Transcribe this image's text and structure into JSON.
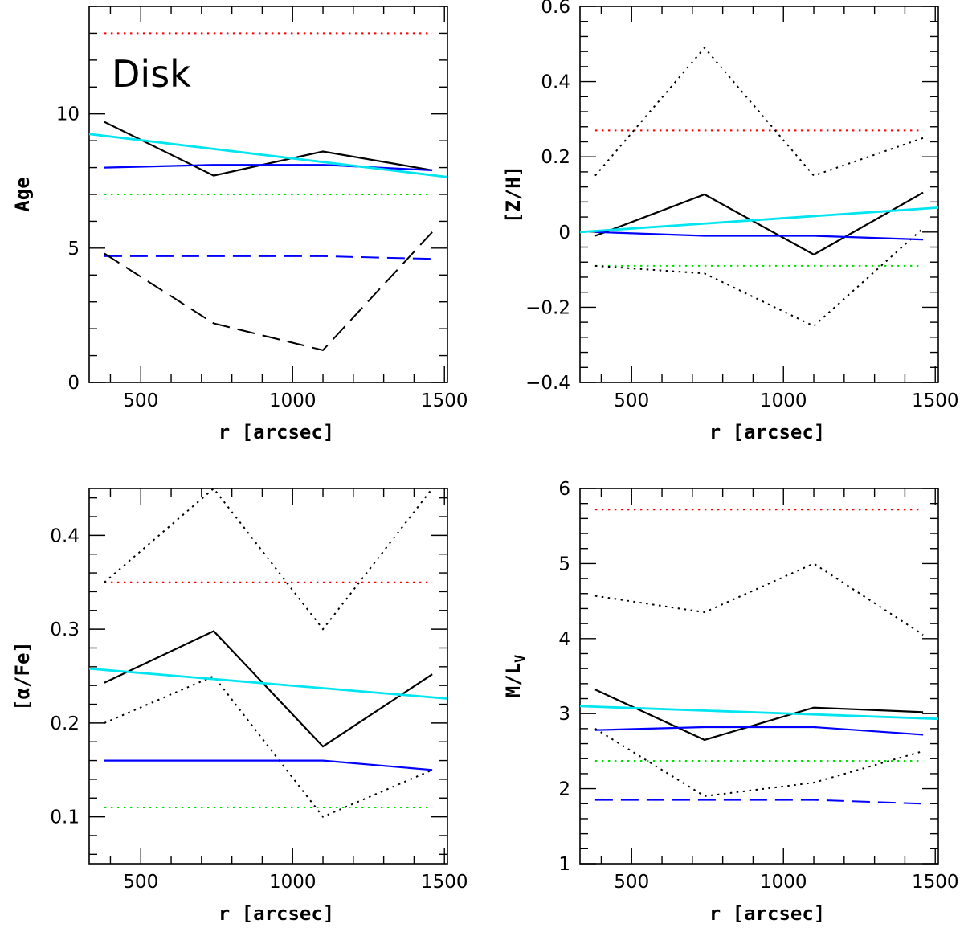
{
  "figure_title": "",
  "chart_data": [
    {
      "type": "line",
      "panel": "top-left",
      "title": "",
      "annotation": "Disk",
      "xlabel": "r [arcsec]",
      "ylabel": "Age",
      "xlim": [
        330,
        1510
      ],
      "ylim": [
        0,
        14
      ],
      "xticks": [
        500,
        1000,
        1500
      ],
      "xtick_labels": [
        "500",
        "1000",
        "1500"
      ],
      "yticks": [
        0,
        5,
        10
      ],
      "ytick_labels": [
        "0",
        "5",
        "10"
      ],
      "series": [
        {
          "name": "red-dotted",
          "color": "#ff0000",
          "style": "dotted",
          "x": [
            380,
            1460
          ],
          "y": [
            13.0,
            13.0
          ]
        },
        {
          "name": "green-dotted",
          "color": "#00e000",
          "style": "dotted",
          "x": [
            380,
            1460
          ],
          "y": [
            7.0,
            7.0
          ]
        },
        {
          "name": "blue-dashed",
          "color": "#0000ff",
          "style": "dashed",
          "x": [
            380,
            1100,
            1460
          ],
          "y": [
            4.7,
            4.7,
            4.6
          ]
        },
        {
          "name": "black-dashed",
          "color": "#000000",
          "style": "dashed",
          "x": [
            380,
            740,
            1100,
            1460
          ],
          "y": [
            4.8,
            2.2,
            1.2,
            5.6
          ]
        },
        {
          "name": "black-solid",
          "color": "#000000",
          "style": "solid",
          "x": [
            380,
            740,
            1100,
            1460
          ],
          "y": [
            9.7,
            7.7,
            8.6,
            7.9
          ]
        },
        {
          "name": "blue-solid",
          "color": "#0000ff",
          "style": "solid",
          "x": [
            380,
            740,
            1100,
            1460
          ],
          "y": [
            8.0,
            8.1,
            8.1,
            7.9
          ]
        },
        {
          "name": "cyan-solid",
          "color": "#00e5f0",
          "style": "solid",
          "x": [
            330,
            1510
          ],
          "y": [
            9.25,
            7.65
          ]
        }
      ]
    },
    {
      "type": "line",
      "panel": "top-right",
      "title": "",
      "annotation": "",
      "xlabel": "r [arcsec]",
      "ylabel": "[Z/H]",
      "xlim": [
        330,
        1510
      ],
      "ylim": [
        -0.4,
        0.6
      ],
      "xticks": [
        500,
        1000,
        1500
      ],
      "xtick_labels": [
        "500",
        "1000",
        "1500"
      ],
      "yticks": [
        -0.4,
        -0.2,
        0,
        0.2,
        0.4,
        0.6
      ],
      "ytick_labels": [
        "−0.4",
        "−0.2",
        "0",
        "0.2",
        "0.4",
        "0.6"
      ],
      "series": [
        {
          "name": "red-dotted",
          "color": "#ff0000",
          "style": "dotted",
          "x": [
            380,
            1460
          ],
          "y": [
            0.27,
            0.27
          ]
        },
        {
          "name": "green-dotted",
          "color": "#00e000",
          "style": "dotted",
          "x": [
            380,
            1460
          ],
          "y": [
            -0.09,
            -0.09
          ]
        },
        {
          "name": "black-dotted-upper",
          "color": "#000000",
          "style": "dotted",
          "x": [
            380,
            740,
            1100,
            1460
          ],
          "y": [
            0.15,
            0.49,
            0.15,
            0.25
          ]
        },
        {
          "name": "black-dotted-lower",
          "color": "#000000",
          "style": "dotted",
          "x": [
            380,
            740,
            1100,
            1460
          ],
          "y": [
            -0.09,
            -0.11,
            -0.25,
            0.01
          ]
        },
        {
          "name": "black-solid",
          "color": "#000000",
          "style": "solid",
          "x": [
            380,
            740,
            1100,
            1460
          ],
          "y": [
            -0.01,
            0.1,
            -0.06,
            0.105
          ]
        },
        {
          "name": "blue-solid",
          "color": "#0000ff",
          "style": "solid",
          "x": [
            380,
            740,
            1100,
            1460
          ],
          "y": [
            0.0,
            -0.01,
            -0.01,
            -0.02
          ]
        },
        {
          "name": "cyan-solid",
          "color": "#00e5f0",
          "style": "solid",
          "x": [
            330,
            1510
          ],
          "y": [
            0.0,
            0.065
          ]
        }
      ]
    },
    {
      "type": "line",
      "panel": "bottom-left",
      "title": "",
      "annotation": "",
      "xlabel": "r [arcsec]",
      "ylabel": "[α/Fe]",
      "xlim": [
        330,
        1510
      ],
      "ylim": [
        0.05,
        0.45
      ],
      "xticks": [
        500,
        1000,
        1500
      ],
      "xtick_labels": [
        "500",
        "1000",
        "1500"
      ],
      "yticks": [
        0.1,
        0.2,
        0.3,
        0.4
      ],
      "ytick_labels": [
        "0.1",
        "0.2",
        "0.3",
        "0.4"
      ],
      "series": [
        {
          "name": "red-dotted",
          "color": "#ff0000",
          "style": "dotted",
          "x": [
            380,
            1460
          ],
          "y": [
            0.35,
            0.35
          ]
        },
        {
          "name": "green-dotted",
          "color": "#00e000",
          "style": "dotted",
          "x": [
            380,
            1460
          ],
          "y": [
            0.11,
            0.11
          ]
        },
        {
          "name": "black-dotted-upper",
          "color": "#000000",
          "style": "dotted",
          "x": [
            380,
            740,
            1100,
            1460
          ],
          "y": [
            0.35,
            0.45,
            0.3,
            0.45
          ]
        },
        {
          "name": "black-dotted-lower",
          "color": "#000000",
          "style": "dotted",
          "x": [
            380,
            740,
            1100,
            1460
          ],
          "y": [
            0.2,
            0.25,
            0.1,
            0.15
          ]
        },
        {
          "name": "black-solid",
          "color": "#000000",
          "style": "solid",
          "x": [
            380,
            740,
            1100,
            1460
          ],
          "y": [
            0.243,
            0.298,
            0.175,
            0.252
          ]
        },
        {
          "name": "blue-solid",
          "color": "#0000ff",
          "style": "solid",
          "x": [
            380,
            740,
            1100,
            1460
          ],
          "y": [
            0.16,
            0.16,
            0.16,
            0.15
          ]
        },
        {
          "name": "cyan-solid",
          "color": "#00e5f0",
          "style": "solid",
          "x": [
            330,
            1510
          ],
          "y": [
            0.258,
            0.226
          ]
        }
      ]
    },
    {
      "type": "line",
      "panel": "bottom-right",
      "title": "",
      "annotation": "",
      "xlabel": "r [arcsec]",
      "ylabel": "M/L",
      "ylabel_sub": "V",
      "xlim": [
        330,
        1510
      ],
      "ylim": [
        1,
        6
      ],
      "xticks": [
        500,
        1000,
        1500
      ],
      "xtick_labels": [
        "500",
        "1000",
        "1500"
      ],
      "yticks": [
        1,
        2,
        3,
        4,
        5,
        6
      ],
      "ytick_labels": [
        "1",
        "2",
        "3",
        "4",
        "5",
        "6"
      ],
      "series": [
        {
          "name": "red-dotted",
          "color": "#ff0000",
          "style": "dotted",
          "x": [
            380,
            1460
          ],
          "y": [
            5.72,
            5.72
          ]
        },
        {
          "name": "green-dotted",
          "color": "#00e000",
          "style": "dotted",
          "x": [
            380,
            1460
          ],
          "y": [
            2.37,
            2.37
          ]
        },
        {
          "name": "blue-dashed",
          "color": "#0000ff",
          "style": "dashed",
          "x": [
            380,
            1100,
            1460
          ],
          "y": [
            1.85,
            1.85,
            1.8
          ]
        },
        {
          "name": "black-dotted-upper",
          "color": "#000000",
          "style": "dotted",
          "x": [
            380,
            740,
            1100,
            1460
          ],
          "y": [
            4.57,
            4.35,
            5.0,
            4.05
          ]
        },
        {
          "name": "black-dotted-lower",
          "color": "#000000",
          "style": "dotted",
          "x": [
            380,
            740,
            1100,
            1460
          ],
          "y": [
            2.8,
            1.9,
            2.08,
            2.5
          ]
        },
        {
          "name": "black-solid",
          "color": "#000000",
          "style": "solid",
          "x": [
            380,
            740,
            1100,
            1460
          ],
          "y": [
            3.32,
            2.65,
            3.08,
            3.02
          ]
        },
        {
          "name": "blue-solid",
          "color": "#0000ff",
          "style": "solid",
          "x": [
            380,
            740,
            1100,
            1460
          ],
          "y": [
            2.78,
            2.82,
            2.82,
            2.72
          ]
        },
        {
          "name": "cyan-solid",
          "color": "#00e5f0",
          "style": "solid",
          "x": [
            330,
            1510
          ],
          "y": [
            3.1,
            2.93
          ]
        }
      ]
    }
  ]
}
